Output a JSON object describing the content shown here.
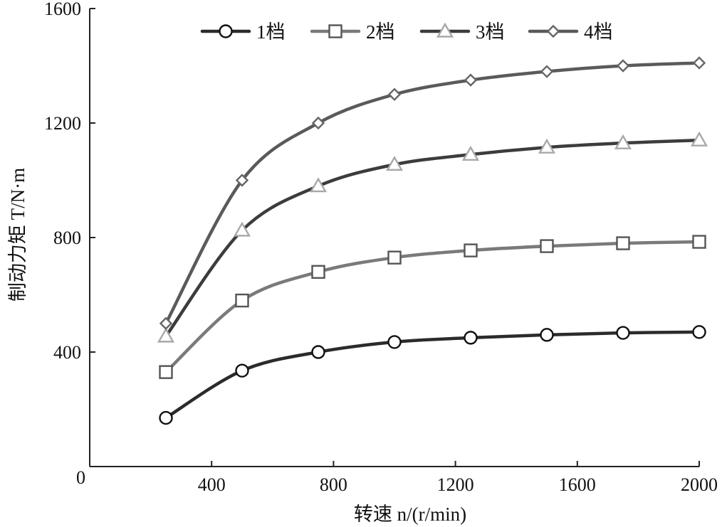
{
  "chart_data": {
    "type": "line",
    "title": "",
    "xlabel": "转速 n/(r/min)",
    "ylabel": "制动力矩 T/N·m",
    "xlim": [
      0,
      2000
    ],
    "ylim": [
      0,
      1600
    ],
    "xticks": [
      400,
      800,
      1200,
      1600,
      2000
    ],
    "yticks": [
      400,
      800,
      1200,
      1600
    ],
    "xtick_labels": [
      "400",
      "800",
      "1200",
      "1600",
      "2000"
    ],
    "ytick_labels": [
      "400",
      "800",
      "1200",
      "1600"
    ],
    "origin_label": "0",
    "grid": false,
    "legend_position": "top",
    "x": [
      250,
      500,
      750,
      1000,
      1250,
      1500,
      1750,
      2000
    ],
    "series": [
      {
        "name": "1档",
        "marker": "circle",
        "color": "#2b2b2b",
        "markerColor": "#111111",
        "values": [
          170,
          335,
          400,
          435,
          450,
          460,
          467,
          470
        ]
      },
      {
        "name": "2档",
        "marker": "square",
        "color": "#7a7a7a",
        "markerColor": "#555555",
        "values": [
          330,
          580,
          680,
          730,
          755,
          770,
          780,
          785
        ]
      },
      {
        "name": "3档",
        "marker": "triangle",
        "color": "#3c3c3c",
        "markerColor": "#a8a8a8",
        "values": [
          455,
          825,
          980,
          1055,
          1090,
          1115,
          1130,
          1140
        ]
      },
      {
        "name": "4档",
        "marker": "diamond",
        "color": "#5a5a5a",
        "markerColor": "#666666",
        "values": [
          500,
          1000,
          1200,
          1300,
          1350,
          1380,
          1400,
          1410
        ]
      }
    ]
  }
}
